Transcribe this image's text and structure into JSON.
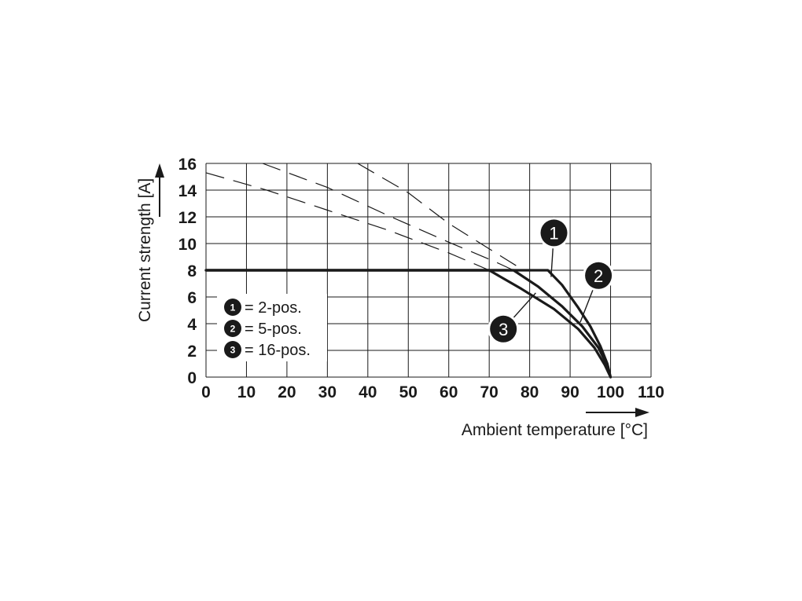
{
  "chart_data": {
    "type": "line",
    "xlabel": "Ambient temperature [°C]",
    "ylabel": "Current strength [A]",
    "xlim": [
      0,
      110
    ],
    "ylim": [
      0,
      16
    ],
    "xticks": [
      0,
      10,
      20,
      30,
      40,
      50,
      60,
      70,
      80,
      90,
      100,
      110
    ],
    "yticks": [
      0,
      2,
      4,
      6,
      8,
      10,
      12,
      14,
      16
    ],
    "grid": true,
    "legend_position": "bottom-left",
    "legend": [
      {
        "marker": "1",
        "label": "= 2-pos."
      },
      {
        "marker": "2",
        "label": "= 5-pos."
      },
      {
        "marker": "3",
        "label": "= 16-pos."
      }
    ],
    "series": [
      {
        "marker": "1",
        "solid": [
          [
            0,
            8
          ],
          [
            84.5,
            8
          ],
          [
            88,
            6.9
          ],
          [
            92,
            5.2
          ],
          [
            95,
            3.8
          ],
          [
            97.5,
            2.3
          ],
          [
            99.2,
            1
          ],
          [
            100,
            0
          ]
        ],
        "dashed": [
          [
            37.5,
            16
          ],
          [
            50,
            13.8
          ],
          [
            60,
            11.5
          ],
          [
            70,
            9.6
          ],
          [
            78.5,
            8
          ]
        ]
      },
      {
        "marker": "2",
        "solid": [
          [
            0,
            8
          ],
          [
            76,
            8
          ],
          [
            82,
            6.8
          ],
          [
            88,
            5.3
          ],
          [
            93,
            3.8
          ],
          [
            97,
            2.2
          ],
          [
            99.3,
            0.8
          ],
          [
            100,
            0
          ]
        ],
        "dashed": [
          [
            14,
            16
          ],
          [
            30,
            14.2
          ],
          [
            45,
            12.1
          ],
          [
            60,
            10.1
          ],
          [
            71,
            8.7
          ],
          [
            76,
            8
          ]
        ]
      },
      {
        "marker": "3",
        "solid": [
          [
            0,
            8
          ],
          [
            70,
            8
          ],
          [
            78,
            6.6
          ],
          [
            86,
            5.1
          ],
          [
            92,
            3.6
          ],
          [
            96,
            2.2
          ],
          [
            98.6,
            0.9
          ],
          [
            100,
            0
          ]
        ],
        "dashed": [
          [
            0,
            15.3
          ],
          [
            15,
            14
          ],
          [
            30,
            12.5
          ],
          [
            45,
            11
          ],
          [
            60,
            9.3
          ],
          [
            70,
            8
          ]
        ]
      }
    ],
    "annotations": [
      {
        "marker": "1",
        "x": 86,
        "y": 10.8,
        "pointer": [
          85.3,
          7.5
        ]
      },
      {
        "marker": "2",
        "x": 97,
        "y": 7.6,
        "pointer": [
          92.5,
          4.1
        ]
      },
      {
        "marker": "3",
        "x": 73.5,
        "y": 3.6,
        "pointer": [
          81.5,
          6.3
        ]
      }
    ]
  }
}
